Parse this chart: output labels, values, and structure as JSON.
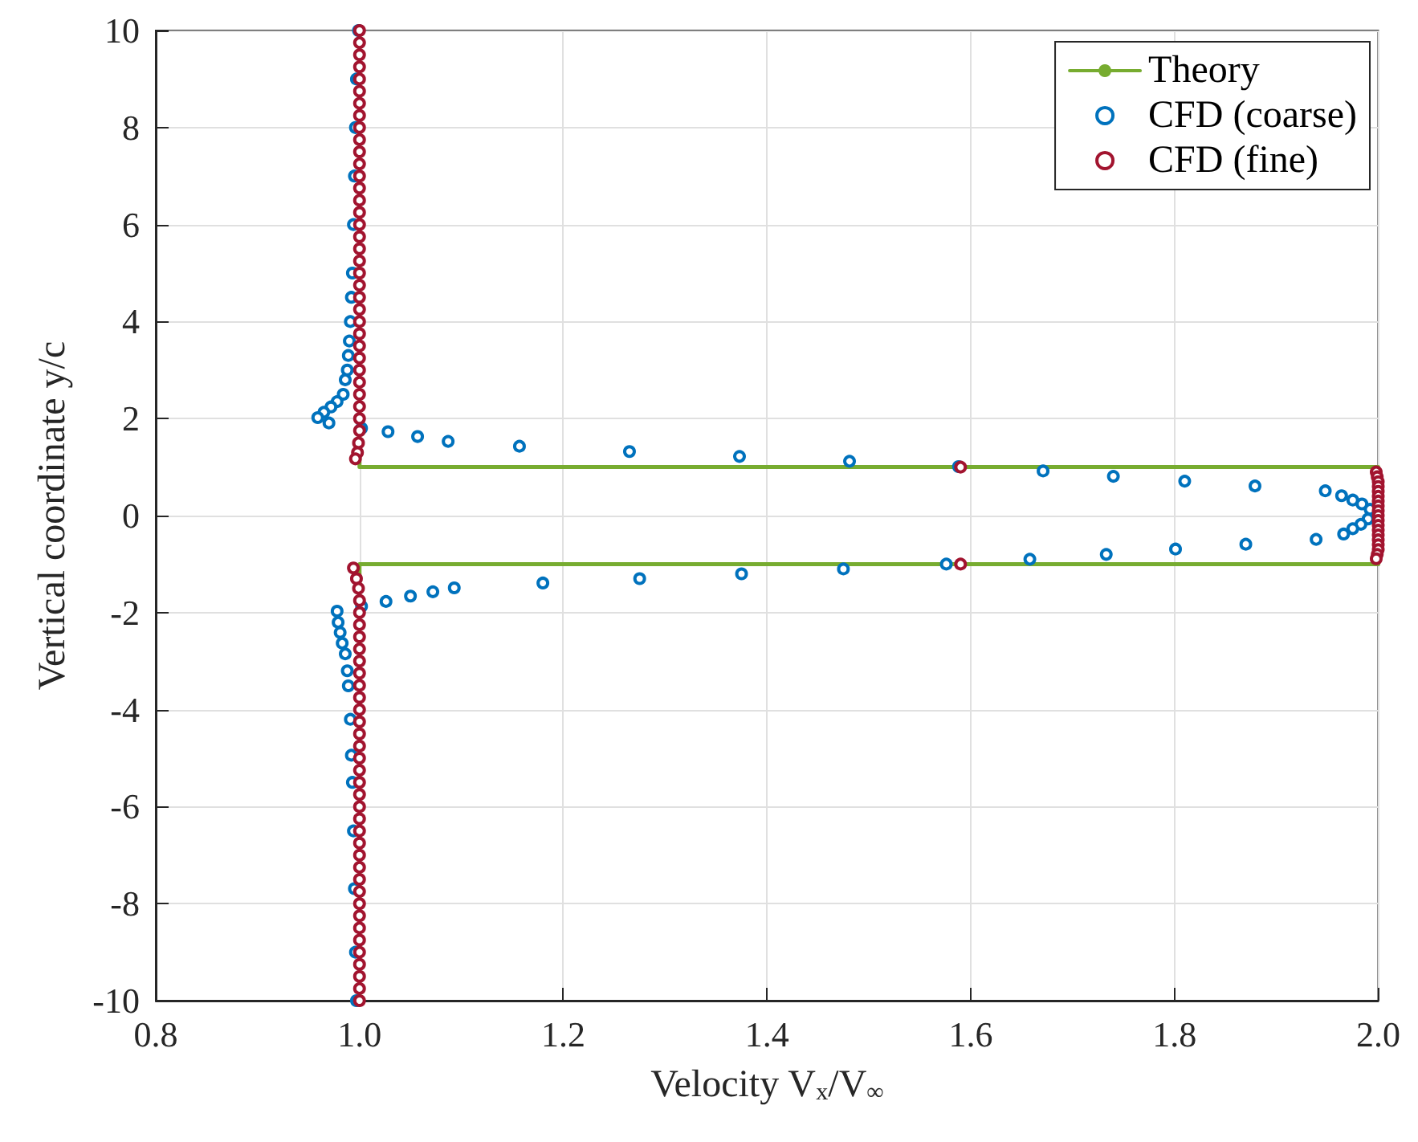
{
  "chart_data": {
    "type": "scatter",
    "xlabel": "Velocity V$_{x}$/V$_{∞}$",
    "ylabel": "Vertical coordinate y/c",
    "xlim": [
      0.8,
      2.0
    ],
    "ylim": [
      -10,
      10
    ],
    "xticks": [
      0.8,
      {
        "value": 1,
        "label": "1.0"
      },
      1.2,
      1.4,
      1.6,
      1.8,
      {
        "value": 2,
        "label": "2.0"
      }
    ],
    "yticks": [
      -10,
      -8,
      -6,
      -4,
      -2,
      0,
      2,
      4,
      6,
      8,
      10
    ],
    "grid": true,
    "legend": "top right",
    "series": [
      {
        "name": "Theory",
        "type": "line",
        "color": "#77ac30",
        "marker": "none",
        "line_style": "solid",
        "x": [
          1,
          1,
          2,
          2,
          1,
          1
        ],
        "values": [
          10,
          1,
          1,
          -1,
          -1,
          -10
        ]
      },
      {
        "name": "CFD (coarse)",
        "color": "#0072bd",
        "marker": "circle",
        "x": [
          0.999,
          0.997,
          0.996,
          0.995,
          0.994,
          0.993,
          0.992,
          0.991,
          0.99,
          0.989,
          0.988,
          0.986,
          0.984,
          0.978,
          0.972,
          0.965,
          0.959,
          0.97,
          1.002,
          1.028,
          1.057,
          1.087,
          1.157,
          1.265,
          1.373,
          1.481,
          1.588,
          1.671,
          1.74,
          1.81,
          1.879,
          1.948,
          1.964,
          1.975,
          1.984,
          1.992,
          1.99,
          1.983,
          1.975,
          1.966,
          1.939,
          1.87,
          1.801,
          1.733,
          1.658,
          1.576,
          1.475,
          1.375,
          1.275,
          1.18,
          1.093,
          1.072,
          1.05,
          1.026,
          1.002,
          0.978,
          0.979,
          0.981,
          0.983,
          0.986,
          0.988,
          0.989,
          0.991,
          0.992,
          0.993,
          0.994,
          0.995,
          0.996,
          0.997
        ],
        "values": [
          10,
          9,
          8,
          7,
          6,
          5,
          4.5,
          4,
          3.6,
          3.3,
          3,
          2.8,
          2.5,
          2.35,
          2.24,
          2.13,
          2.02,
          1.91,
          1.8,
          1.73,
          1.63,
          1.53,
          1.43,
          1.32,
          1.22,
          1.12,
          1.01,
          0.92,
          0.81,
          0.71,
          0.61,
          0.51,
          0.41,
          0.32,
          0.24,
          0.13,
          -0.07,
          -0.18,
          -0.27,
          -0.38,
          -0.49,
          -0.59,
          -0.69,
          -0.8,
          -0.9,
          -1.0,
          -1.1,
          -1.2,
          -1.3,
          -1.39,
          -1.49,
          -1.57,
          -1.66,
          -1.77,
          -1.87,
          -1.97,
          -2.2,
          -2.41,
          -2.63,
          -2.85,
          -3.2,
          -3.51,
          -4.2,
          -4.94,
          -5.5,
          -6.5,
          -7.69,
          -9,
          -10
        ]
      },
      {
        "name": "CFD (fine)",
        "color": "#a2142f",
        "marker": "circle",
        "x": [
          1,
          1,
          1,
          1,
          1,
          1,
          1,
          1,
          1,
          1,
          1,
          1,
          1,
          1,
          1,
          1,
          1,
          1,
          1,
          1,
          1,
          1,
          1,
          1,
          1,
          1,
          1,
          1,
          1,
          1,
          1,
          1,
          1,
          1,
          0.999,
          0.998,
          0.996,
          1.59,
          1.998,
          1.999,
          2,
          2,
          2,
          2,
          2,
          2,
          2,
          2,
          2,
          2,
          2,
          2,
          2,
          2,
          2,
          1.999,
          1.998,
          1.59,
          0.994,
          0.997,
          0.999,
          1,
          1,
          1,
          1,
          1,
          1,
          1,
          1,
          1,
          1,
          1,
          1,
          1,
          1,
          1,
          1,
          1,
          1,
          1,
          1,
          1,
          1,
          1,
          1,
          1,
          1,
          1,
          1,
          1,
          1,
          1,
          1,
          1,
          1
        ],
        "values": [
          10,
          9.75,
          9.5,
          9.25,
          9,
          8.75,
          8.5,
          8.25,
          8,
          7.75,
          7.5,
          7.25,
          7,
          6.75,
          6.5,
          6.25,
          6,
          5.75,
          5.5,
          5.25,
          5,
          4.75,
          4.5,
          4.25,
          4,
          3.75,
          3.5,
          3.25,
          3,
          2.75,
          2.5,
          2.25,
          2,
          1.75,
          1.5,
          1.3,
          1.17,
          1.0,
          0.9,
          0.8,
          0.7,
          0.6,
          0.5,
          0.4,
          0.3,
          0.2,
          0.1,
          0,
          -0.1,
          -0.2,
          -0.3,
          -0.4,
          -0.5,
          -0.6,
          -0.7,
          -0.8,
          -0.89,
          -1.0,
          -1.08,
          -1.3,
          -1.5,
          -1.75,
          -2,
          -2.25,
          -2.5,
          -2.75,
          -3,
          -3.25,
          -3.5,
          -3.75,
          -4,
          -4.25,
          -4.5,
          -4.75,
          -5,
          -5.25,
          -5.5,
          -5.75,
          -6,
          -6.25,
          -6.5,
          -6.75,
          -7,
          -7.25,
          -7.5,
          -7.75,
          -8,
          -8.25,
          -8.5,
          -8.75,
          -9,
          -9.25,
          -9.5,
          -9.75,
          -10
        ]
      }
    ]
  }
}
